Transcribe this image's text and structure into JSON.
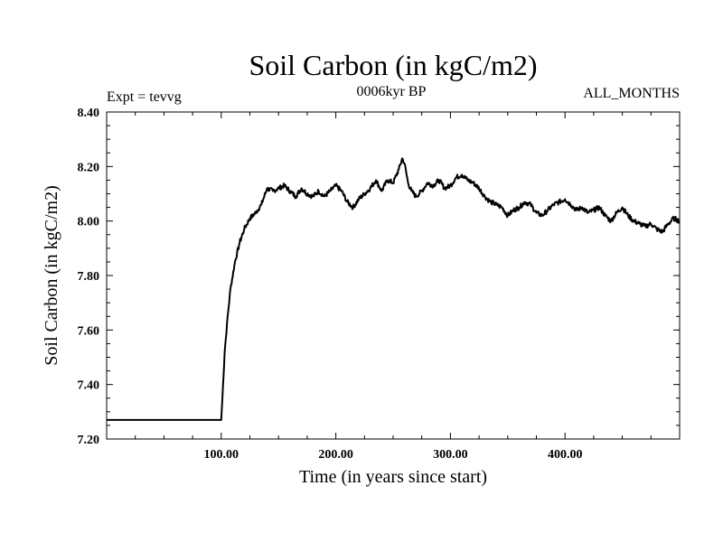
{
  "chart_data": {
    "type": "line",
    "title": "Soil Carbon (in kgC/m2)",
    "subtitle_left": "Expt = tevvg",
    "subtitle_center": "0006kyr BP",
    "subtitle_right": "ALL_MONTHS",
    "xlabel": "Time (in years since start)",
    "ylabel": "Soil Carbon (in kgC/m2)",
    "xlim": [
      0,
      500
    ],
    "ylim": [
      7.2,
      8.4
    ],
    "xticks": [
      100,
      200,
      300,
      400
    ],
    "xtick_labels": [
      "100.00",
      "200.00",
      "300.00",
      "400.00"
    ],
    "yticks": [
      7.2,
      7.4,
      7.6,
      7.8,
      8.0,
      8.2,
      8.4
    ],
    "ytick_labels": [
      "7.20",
      "7.40",
      "7.60",
      "7.80",
      "8.00",
      "8.20",
      "8.40"
    ],
    "series": [
      {
        "name": "Soil Carbon",
        "color": "#000000",
        "x": [
          0,
          100,
          101,
          103,
          105,
          108,
          112,
          116,
          120,
          125,
          130,
          135,
          140,
          145,
          150,
          155,
          160,
          165,
          170,
          175,
          180,
          185,
          190,
          195,
          200,
          205,
          210,
          215,
          220,
          225,
          230,
          235,
          240,
          245,
          250,
          255,
          258,
          260,
          263,
          266,
          270,
          275,
          280,
          285,
          290,
          295,
          300,
          305,
          310,
          315,
          320,
          325,
          330,
          335,
          340,
          345,
          350,
          355,
          360,
          365,
          370,
          375,
          380,
          385,
          390,
          395,
          400,
          405,
          410,
          415,
          420,
          425,
          430,
          435,
          440,
          445,
          450,
          455,
          460,
          465,
          470,
          475,
          480,
          485,
          490,
          495,
          500
        ],
        "values": [
          7.27,
          7.27,
          7.35,
          7.52,
          7.62,
          7.75,
          7.85,
          7.92,
          7.97,
          8.01,
          8.03,
          8.06,
          8.12,
          8.11,
          8.12,
          8.13,
          8.11,
          8.09,
          8.12,
          8.1,
          8.09,
          8.11,
          8.09,
          8.11,
          8.13,
          8.11,
          8.07,
          8.05,
          8.08,
          8.1,
          8.12,
          8.15,
          8.11,
          8.15,
          8.14,
          8.19,
          8.23,
          8.21,
          8.14,
          8.11,
          8.09,
          8.11,
          8.14,
          8.13,
          8.15,
          8.12,
          8.13,
          8.16,
          8.17,
          8.15,
          8.14,
          8.12,
          8.09,
          8.07,
          8.06,
          8.05,
          8.02,
          8.04,
          8.05,
          8.07,
          8.06,
          8.03,
          8.02,
          8.04,
          8.06,
          8.07,
          8.08,
          8.06,
          8.04,
          8.05,
          8.03,
          8.04,
          8.05,
          8.02,
          8.0,
          8.03,
          8.05,
          8.02,
          8.0,
          7.99,
          7.98,
          7.99,
          7.97,
          7.96,
          7.99,
          8.01,
          8.0
        ]
      }
    ]
  }
}
